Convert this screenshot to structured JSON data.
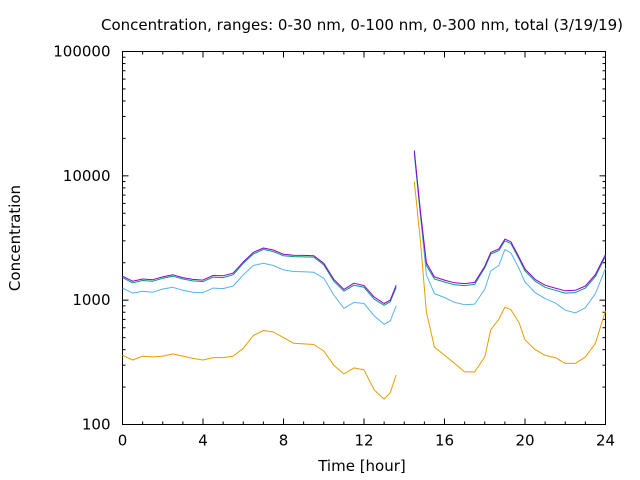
{
  "chart_data": {
    "type": "line",
    "title": "Concentration, ranges: 0-30 nm, 0-100 nm, 0-300 nm, total (3/19/19)",
    "xlabel": "Time [hour]",
    "ylabel": "Concentration",
    "xlim": [
      0,
      24
    ],
    "ylim": [
      100,
      100000
    ],
    "yscale": "log",
    "grid": false,
    "legend": "none",
    "x_ticks": [
      "0",
      "4",
      "8",
      "12",
      "16",
      "20",
      "24"
    ],
    "y_ticks": [
      "100",
      "1000",
      "10000",
      "100000"
    ],
    "series": [
      {
        "color": "#e69f00",
        "segments": [
          [
            [
              0,
              360
            ],
            [
              0.5,
              330
            ],
            [
              1,
              355
            ],
            [
              1.5,
              350
            ],
            [
              2,
              355
            ],
            [
              2.5,
              370
            ],
            [
              3,
              355
            ],
            [
              3.5,
              340
            ],
            [
              4,
              330
            ],
            [
              4.5,
              345
            ],
            [
              5,
              345
            ],
            [
              5.5,
              355
            ],
            [
              6,
              410
            ],
            [
              6.5,
              520
            ],
            [
              7,
              570
            ],
            [
              7.5,
              555
            ],
            [
              8,
              500
            ],
            [
              8.5,
              450
            ],
            [
              9,
              445
            ],
            [
              9.5,
              440
            ],
            [
              10,
              390
            ],
            [
              10.5,
              300
            ],
            [
              11,
              255
            ],
            [
              11.5,
              285
            ],
            [
              12,
              275
            ],
            [
              12.5,
              190
            ],
            [
              13,
              160
            ],
            [
              13.3,
              180
            ],
            [
              13.6,
              250
            ]
          ],
          [
            [
              14.5,
              9000
            ],
            [
              14.8,
              3000
            ],
            [
              15.1,
              800
            ],
            [
              15.5,
              420
            ],
            [
              16,
              360
            ],
            [
              16.5,
              310
            ],
            [
              17,
              265
            ],
            [
              17.5,
              265
            ],
            [
              18,
              350
            ],
            [
              18.3,
              580
            ],
            [
              18.7,
              700
            ],
            [
              19,
              880
            ],
            [
              19.3,
              840
            ],
            [
              19.7,
              660
            ],
            [
              20,
              480
            ],
            [
              20.5,
              400
            ],
            [
              21,
              360
            ],
            [
              21.5,
              345
            ],
            [
              22,
              310
            ],
            [
              22.5,
              310
            ],
            [
              23,
              350
            ],
            [
              23.5,
              450
            ],
            [
              24,
              820
            ]
          ]
        ]
      },
      {
        "color": "#56b4e9",
        "segments": [
          [
            [
              0,
              1250
            ],
            [
              0.5,
              1140
            ],
            [
              1,
              1180
            ],
            [
              1.5,
              1160
            ],
            [
              2,
              1230
            ],
            [
              2.5,
              1270
            ],
            [
              3,
              1200
            ],
            [
              3.5,
              1160
            ],
            [
              4,
              1150
            ],
            [
              4.5,
              1250
            ],
            [
              5,
              1240
            ],
            [
              5.5,
              1300
            ],
            [
              6,
              1600
            ],
            [
              6.5,
              1900
            ],
            [
              7,
              1980
            ],
            [
              7.5,
              1900
            ],
            [
              8,
              1750
            ],
            [
              8.5,
              1700
            ],
            [
              9,
              1690
            ],
            [
              9.5,
              1680
            ],
            [
              10,
              1500
            ],
            [
              10.5,
              1100
            ],
            [
              11,
              860
            ],
            [
              11.5,
              960
            ],
            [
              12,
              940
            ],
            [
              12.5,
              750
            ],
            [
              13,
              640
            ],
            [
              13.3,
              680
            ],
            [
              13.6,
              900
            ]
          ],
          [
            [
              14.5,
              15000
            ],
            [
              14.8,
              4800
            ],
            [
              15.1,
              1600
            ],
            [
              15.5,
              1130
            ],
            [
              16,
              1050
            ],
            [
              16.5,
              960
            ],
            [
              17,
              920
            ],
            [
              17.5,
              930
            ],
            [
              18,
              1230
            ],
            [
              18.3,
              1720
            ],
            [
              18.7,
              1900
            ],
            [
              19,
              2550
            ],
            [
              19.3,
              2400
            ],
            [
              19.7,
              1800
            ],
            [
              20,
              1400
            ],
            [
              20.5,
              1150
            ],
            [
              21,
              1030
            ],
            [
              21.5,
              950
            ],
            [
              22,
              830
            ],
            [
              22.5,
              790
            ],
            [
              23,
              870
            ],
            [
              23.5,
              1130
            ],
            [
              24,
              1800
            ]
          ]
        ]
      },
      {
        "color": "#009e73",
        "segments": [
          [
            [
              0,
              1520
            ],
            [
              0.5,
              1380
            ],
            [
              1,
              1440
            ],
            [
              1.5,
              1420
            ],
            [
              2,
              1500
            ],
            [
              2.5,
              1560
            ],
            [
              3,
              1480
            ],
            [
              3.5,
              1430
            ],
            [
              4,
              1410
            ],
            [
              4.5,
              1530
            ],
            [
              5,
              1520
            ],
            [
              5.5,
              1600
            ],
            [
              6,
              1980
            ],
            [
              6.5,
              2350
            ],
            [
              7,
              2560
            ],
            [
              7.5,
              2460
            ],
            [
              8,
              2280
            ],
            [
              8.5,
              2240
            ],
            [
              9,
              2230
            ],
            [
              9.5,
              2220
            ],
            [
              10,
              1920
            ],
            [
              10.5,
              1420
            ],
            [
              11,
              1180
            ],
            [
              11.5,
              1320
            ],
            [
              12,
              1270
            ],
            [
              12.5,
              1020
            ],
            [
              13,
              910
            ],
            [
              13.3,
              970
            ],
            [
              13.6,
              1270
            ]
          ],
          [
            [
              14.5,
              15500
            ],
            [
              14.8,
              5000
            ],
            [
              15.1,
              1900
            ],
            [
              15.5,
              1480
            ],
            [
              16,
              1400
            ],
            [
              16.5,
              1330
            ],
            [
              17,
              1310
            ],
            [
              17.5,
              1340
            ],
            [
              18,
              1820
            ],
            [
              18.3,
              2350
            ],
            [
              18.7,
              2500
            ],
            [
              19,
              3000
            ],
            [
              19.3,
              2850
            ],
            [
              19.7,
              2150
            ],
            [
              20,
              1720
            ],
            [
              20.5,
              1420
            ],
            [
              21,
              1270
            ],
            [
              21.5,
              1200
            ],
            [
              22,
              1140
            ],
            [
              22.5,
              1150
            ],
            [
              23,
              1250
            ],
            [
              23.5,
              1550
            ],
            [
              24,
              2250
            ]
          ]
        ]
      },
      {
        "color": "#9400d3",
        "segments": [
          [
            [
              0,
              1560
            ],
            [
              0.5,
              1420
            ],
            [
              1,
              1480
            ],
            [
              1.5,
              1460
            ],
            [
              2,
              1540
            ],
            [
              2.5,
              1600
            ],
            [
              3,
              1520
            ],
            [
              3.5,
              1470
            ],
            [
              4,
              1450
            ],
            [
              4.5,
              1580
            ],
            [
              5,
              1570
            ],
            [
              5.5,
              1650
            ],
            [
              6,
              2030
            ],
            [
              6.5,
              2420
            ],
            [
              7,
              2630
            ],
            [
              7.5,
              2530
            ],
            [
              8,
              2340
            ],
            [
              8.5,
              2300
            ],
            [
              9,
              2290
            ],
            [
              9.5,
              2280
            ],
            [
              10,
              1980
            ],
            [
              10.5,
              1470
            ],
            [
              11,
              1220
            ],
            [
              11.5,
              1370
            ],
            [
              12,
              1310
            ],
            [
              12.5,
              1060
            ],
            [
              13,
              940
            ],
            [
              13.3,
              1000
            ],
            [
              13.6,
              1320
            ]
          ],
          [
            [
              14.5,
              16000
            ],
            [
              14.8,
              5200
            ],
            [
              15.1,
              2000
            ],
            [
              15.5,
              1540
            ],
            [
              16,
              1450
            ],
            [
              16.5,
              1380
            ],
            [
              17,
              1360
            ],
            [
              17.5,
              1390
            ],
            [
              18,
              1880
            ],
            [
              18.3,
              2420
            ],
            [
              18.7,
              2580
            ],
            [
              19,
              3100
            ],
            [
              19.3,
              2950
            ],
            [
              19.7,
              2220
            ],
            [
              20,
              1780
            ],
            [
              20.5,
              1470
            ],
            [
              21,
              1320
            ],
            [
              21.5,
              1250
            ],
            [
              22,
              1190
            ],
            [
              22.5,
              1200
            ],
            [
              23,
              1300
            ],
            [
              23.5,
              1610
            ],
            [
              24,
              2330
            ]
          ]
        ]
      }
    ]
  }
}
